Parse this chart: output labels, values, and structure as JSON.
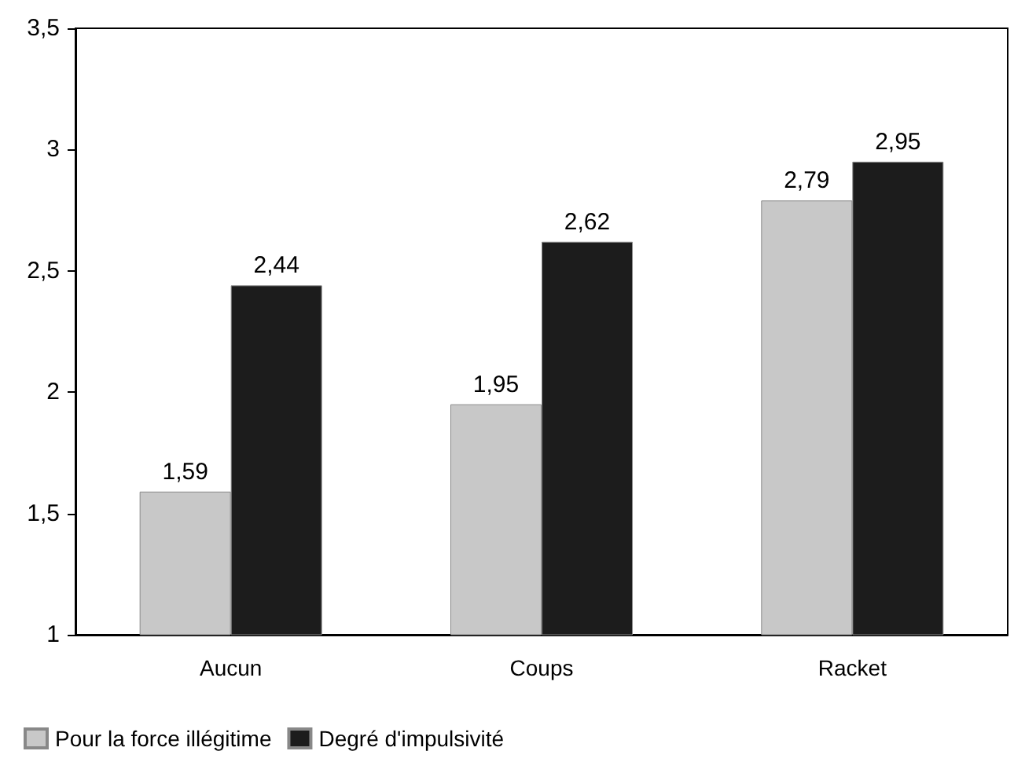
{
  "chart_data": {
    "type": "bar",
    "categories": [
      "Aucun",
      "Coups",
      "Racket"
    ],
    "series": [
      {
        "name": "Pour la force illégitime",
        "color": "#c8c8c8",
        "values": [
          1.59,
          1.95,
          2.79
        ],
        "value_labels": [
          "1,59",
          "1,95",
          "2,79"
        ]
      },
      {
        "name": "Degré d'impulsivité",
        "color": "#1c1c1c",
        "values": [
          2.44,
          2.62,
          2.95
        ],
        "value_labels": [
          "2,44",
          "2,62",
          "2,95"
        ]
      }
    ],
    "ylim": [
      1,
      3.5
    ],
    "yticks": [
      1,
      {
        "value": 1.5,
        "label": "1,5"
      },
      2,
      {
        "value": 2.5,
        "label": "2,5"
      },
      3,
      {
        "value": 3.5,
        "label": "3,5"
      }
    ],
    "grid": false,
    "legend": "bottom left"
  }
}
